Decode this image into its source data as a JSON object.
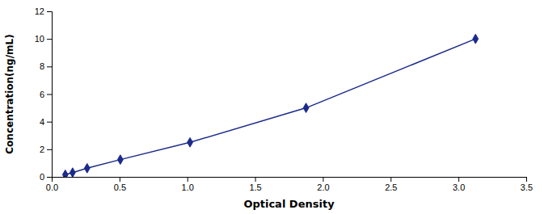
{
  "chart_data": {
    "type": "line",
    "x": [
      0.1,
      0.154,
      0.261,
      0.506,
      1.02,
      1.876,
      3.126
    ],
    "y": [
      0.156,
      0.312,
      0.625,
      1.25,
      2.5,
      5.0,
      10.0
    ],
    "color": "#1B2A8A",
    "marker": "diamond",
    "line_style": "solid",
    "xlabel": "Optical Density",
    "ylabel": "Concentration(ng/mL)",
    "xlim": [
      0,
      3.5
    ],
    "ylim": [
      0,
      12
    ],
    "xticks": [
      {
        "value": 0,
        "label": "0.0"
      },
      0.5,
      {
        "value": 1,
        "label": "1.0"
      },
      1.5,
      {
        "value": 2,
        "label": "2.0"
      },
      2.5,
      {
        "value": 3,
        "label": "3.0"
      },
      3.5
    ],
    "yticks": [
      0,
      2,
      4,
      6,
      8,
      10,
      12
    ],
    "grid": false
  }
}
